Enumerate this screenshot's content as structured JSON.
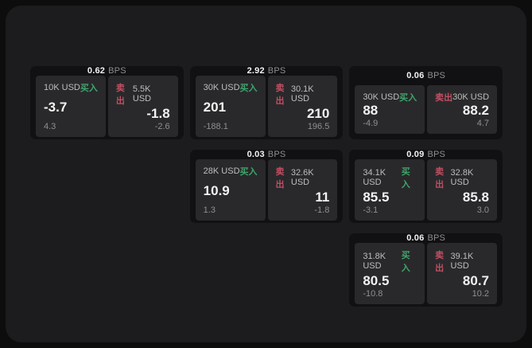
{
  "labels": {
    "unit": "BPS",
    "buy": "买入",
    "sell": "卖出"
  },
  "colors": {
    "outer_bg": "#0d0d0d",
    "panel_bg": "#1c1c1e",
    "card_bg": "#111113",
    "tile_bg": "#29292b",
    "buy": "#3fa56b",
    "sell": "#c04f63",
    "text_primary": "#f2f2f2",
    "text_secondary": "#bdbdbd",
    "text_muted": "#8f8f8f"
  },
  "cards": [
    {
      "bps": "0.62",
      "buy": {
        "amount": "10K USD",
        "value": "-3.7",
        "delta": "4.3"
      },
      "sell": {
        "amount": "5.5K USD",
        "value": "-1.8",
        "delta": "-2.6"
      }
    },
    {
      "bps": "2.92",
      "buy": {
        "amount": "30K USD",
        "value": "201",
        "delta": "-188.1"
      },
      "sell": {
        "amount": "30.1K USD",
        "value": "210",
        "delta": "196.5"
      }
    },
    {
      "bps": "0.06",
      "buy": {
        "amount": "30K USD",
        "value": "88",
        "delta": "-4.9"
      },
      "sell": {
        "amount": "30K USD",
        "value": "88.2",
        "delta": "4.7"
      }
    },
    {
      "bps": "0.03",
      "buy": {
        "amount": "28K USD",
        "value": "10.9",
        "delta": "1.3"
      },
      "sell": {
        "amount": "32.6K USD",
        "value": "11",
        "delta": "-1.8"
      }
    },
    {
      "bps": "0.09",
      "buy": {
        "amount": "34.1K USD",
        "value": "85.5",
        "delta": "-3.1"
      },
      "sell": {
        "amount": "32.8K USD",
        "value": "85.8",
        "delta": "3.0"
      }
    },
    {
      "bps": "0.06",
      "buy": {
        "amount": "31.8K USD",
        "value": "80.5",
        "delta": "-10.8"
      },
      "sell": {
        "amount": "39.1K USD",
        "value": "80.7",
        "delta": "10.2"
      }
    }
  ]
}
